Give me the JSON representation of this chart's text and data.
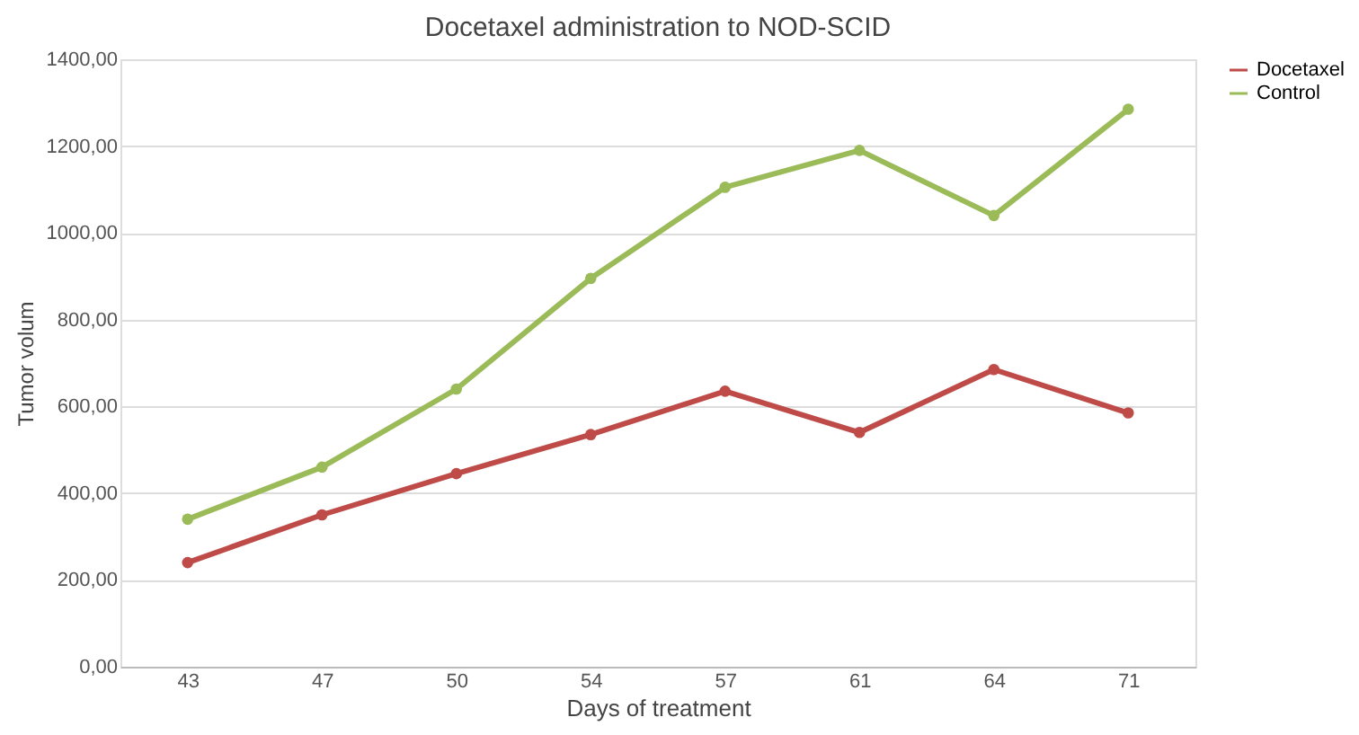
{
  "chart_data": {
    "type": "line",
    "title": "Docetaxel administration to NOD-SCID",
    "xlabel": "Days of treatment",
    "ylabel": "Tumor volum",
    "categories": [
      "43",
      "47",
      "50",
      "54",
      "57",
      "61",
      "64",
      "71"
    ],
    "series": [
      {
        "name": "Docetaxel",
        "color": "#be4b48",
        "values": [
          240,
          350,
          445,
          535,
          635,
          540,
          685,
          585
        ]
      },
      {
        "name": "Control",
        "color": "#9bbb59",
        "values": [
          340,
          460,
          640,
          895,
          1105,
          1190,
          1040,
          1285
        ]
      }
    ],
    "ylim": [
      0,
      1400
    ],
    "yticks": [
      {
        "value": 0,
        "label": "0,00"
      },
      {
        "value": 200,
        "label": "200,00"
      },
      {
        "value": 400,
        "label": "400,00"
      },
      {
        "value": 600,
        "label": "600,00"
      },
      {
        "value": 800,
        "label": "800,00"
      },
      {
        "value": 1000,
        "label": "1000,00"
      },
      {
        "value": 1200,
        "label": "1200,00"
      },
      {
        "value": 1400,
        "label": "1400,00"
      }
    ],
    "grid": "y",
    "legend": "right",
    "marker": "circle",
    "line_style": "solid"
  }
}
